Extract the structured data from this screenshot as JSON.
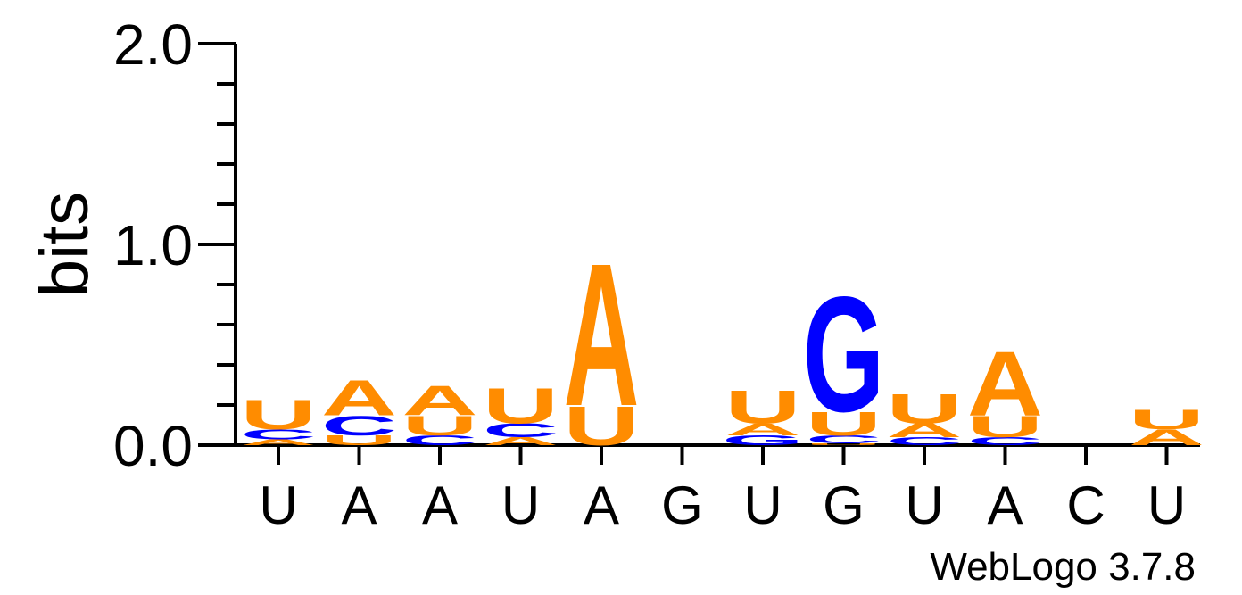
{
  "chart_data": {
    "type": "sequence-logo",
    "ylabel": "bits",
    "ylim": [
      0,
      2.0
    ],
    "yticks": [
      "0.0",
      "1.0",
      "2.0"
    ],
    "xtick_labels": [
      "U",
      "A",
      "A",
      "U",
      "A",
      "G",
      "U",
      "G",
      "U",
      "A",
      "C",
      "U"
    ],
    "footer": "WebLogo 3.7.8",
    "colors": {
      "A": "#ff8c00",
      "U": "#ff8c00",
      "C": "#0000ff",
      "G": "#0000ff"
    },
    "positions": [
      {
        "letters": [
          {
            "char": "A",
            "bits": 0.03
          },
          {
            "char": "C",
            "bits": 0.05
          },
          {
            "char": "U",
            "bits": 0.15
          }
        ]
      },
      {
        "letters": [
          {
            "char": "U",
            "bits": 0.05
          },
          {
            "char": "C",
            "bits": 0.1
          },
          {
            "char": "A",
            "bits": 0.18
          }
        ]
      },
      {
        "letters": [
          {
            "char": "C",
            "bits": 0.05
          },
          {
            "char": "U",
            "bits": 0.1
          },
          {
            "char": "A",
            "bits": 0.15
          }
        ]
      },
      {
        "letters": [
          {
            "char": "A",
            "bits": 0.04
          },
          {
            "char": "C",
            "bits": 0.07
          },
          {
            "char": "U",
            "bits": 0.18
          }
        ]
      },
      {
        "letters": [
          {
            "char": "U",
            "bits": 0.2
          },
          {
            "char": "A",
            "bits": 0.73
          }
        ]
      },
      {
        "letters": []
      },
      {
        "letters": [
          {
            "char": "G",
            "bits": 0.05
          },
          {
            "char": "A",
            "bits": 0.06
          },
          {
            "char": "U",
            "bits": 0.17
          }
        ]
      },
      {
        "letters": [
          {
            "char": "U",
            "bits": 0.01
          },
          {
            "char": "C",
            "bits": 0.04
          },
          {
            "char": "U",
            "bits": 0.12
          },
          {
            "char": "G",
            "bits": 0.59
          }
        ]
      },
      {
        "letters": [
          {
            "char": "C",
            "bits": 0.04
          },
          {
            "char": "A",
            "bits": 0.07
          },
          {
            "char": "U",
            "bits": 0.15
          }
        ]
      },
      {
        "letters": [
          {
            "char": "C",
            "bits": 0.04
          },
          {
            "char": "U",
            "bits": 0.11
          },
          {
            "char": "A",
            "bits": 0.33
          }
        ]
      },
      {
        "letters": []
      },
      {
        "letters": [
          {
            "char": "A",
            "bits": 0.08
          },
          {
            "char": "U",
            "bits": 0.1
          }
        ]
      }
    ]
  }
}
